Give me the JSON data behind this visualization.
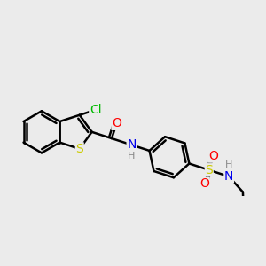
{
  "bg_color": "#ebebeb",
  "bond_color": "#000000",
  "bond_width": 1.8,
  "atom_colors": {
    "Cl": "#00bb00",
    "S": "#cccc00",
    "O": "#ff0000",
    "N": "#0000ee",
    "H": "#888888",
    "C": "#000000"
  },
  "font_size": 10,
  "small_font_size": 8
}
